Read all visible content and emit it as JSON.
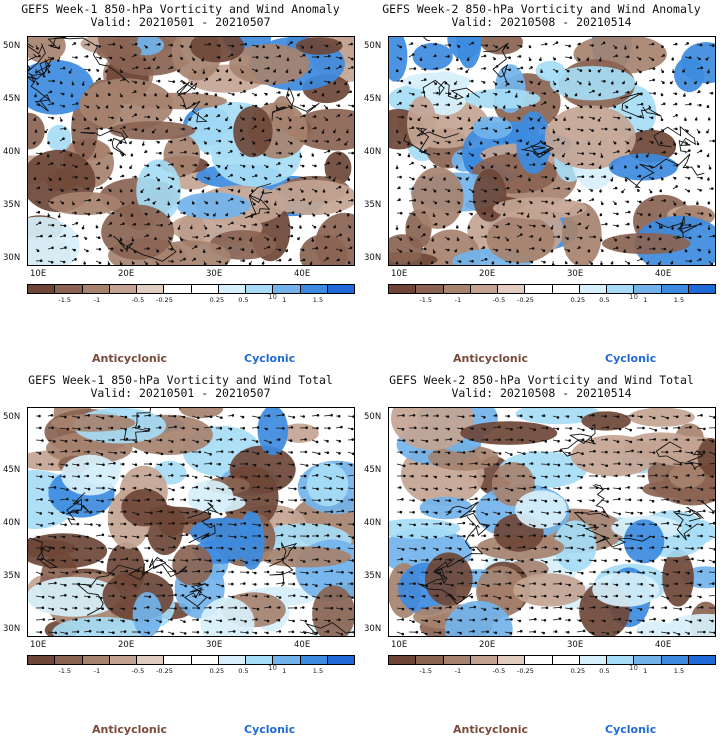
{
  "colors": {
    "anticyclonic": "#7a4a3a",
    "cyclonic": "#1f6ad8",
    "colorbar": [
      "#6e4637",
      "#8a6352",
      "#a6826f",
      "#c3a493",
      "#e0ccc0",
      "#ffffff",
      "#ffffff",
      "#d7f0fb",
      "#a6dcf5",
      "#72b3ec",
      "#3d8be0",
      "#1f6ad8"
    ]
  },
  "panels": [
    {
      "title": "GEFS Week-1 850-hPa Vorticity and Wind Anomaly",
      "valid": "Valid: 20210501 - 20210507",
      "latitudes": [
        "50N",
        "45N",
        "40N",
        "35N",
        "30N"
      ],
      "longitudes": [
        "10E",
        "20E",
        "30E",
        "40E"
      ],
      "colorbar_labels": [
        "-1.5",
        "-1",
        "-0.5",
        "-0.25",
        "0.25",
        "0.5",
        "1",
        "1.5"
      ],
      "units": "10",
      "anticyclonic_label": "Anticyclonic",
      "cyclonic_label": "Cyclonic"
    },
    {
      "title": "GEFS Week-2 850-hPa Vorticity and Wind Anomaly",
      "valid": "Valid: 20210508 - 20210514",
      "latitudes": [
        "50N",
        "45N",
        "40N",
        "35N",
        "30N"
      ],
      "longitudes": [
        "10E",
        "20E",
        "30E",
        "40E"
      ],
      "colorbar_labels": [
        "-1.5",
        "-1",
        "-0.5",
        "-0.25",
        "0.25",
        "0.5",
        "1",
        "1.5"
      ],
      "units": "10",
      "anticyclonic_label": "Anticyclonic",
      "cyclonic_label": "Cyclonic"
    },
    {
      "title": "GEFS Week-1 850-hPa Vorticity and Wind Total",
      "valid": "Valid: 20210501 - 20210507",
      "latitudes": [
        "50N",
        "45N",
        "40N",
        "35N",
        "30N"
      ],
      "longitudes": [
        "10E",
        "20E",
        "30E",
        "40E"
      ],
      "colorbar_labels": [
        "-1.5",
        "-1",
        "-0.5",
        "-0.25",
        "0.25",
        "0.5",
        "1",
        "1.5"
      ],
      "units": "10",
      "anticyclonic_label": "Anticyclonic",
      "cyclonic_label": "Cyclonic"
    },
    {
      "title": "GEFS Week-2 850-hPa Vorticity and Wind Total",
      "valid": "Valid: 20210508 - 20210514",
      "latitudes": [
        "50N",
        "45N",
        "40N",
        "35N",
        "30N"
      ],
      "longitudes": [
        "10E",
        "20E",
        "30E",
        "40E"
      ],
      "colorbar_labels": [
        "-1.5",
        "-1",
        "-0.5",
        "-0.25",
        "0.25",
        "0.5",
        "1",
        "1.5"
      ],
      "units": "10",
      "anticyclonic_label": "Anticyclonic",
      "cyclonic_label": "Cyclonic"
    }
  ]
}
